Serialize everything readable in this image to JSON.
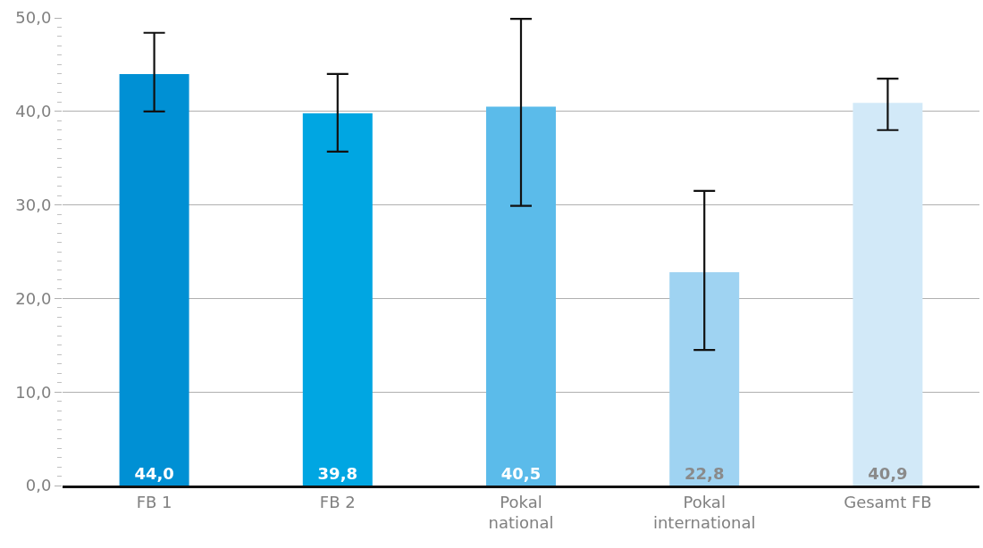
{
  "chart_data": {
    "type": "bar",
    "categories": [
      "FB 1",
      "FB 2",
      "Pokal national",
      "Pokal international",
      "Gesamt FB"
    ],
    "values": [
      44.0,
      39.8,
      40.5,
      22.8,
      40.9
    ],
    "colors": [
      "#0090d4",
      "#00a6e2",
      "#5bbbea",
      "#9fd3f2",
      "#d2e9f8"
    ],
    "value_labels": [
      "44,0",
      "39,8",
      "40,5",
      "22,8",
      "40,9"
    ],
    "errors": [
      [
        40.0,
        48.4
      ],
      [
        35.7,
        44.0
      ],
      [
        29.9,
        49.9
      ],
      [
        14.5,
        31.5
      ],
      [
        38.0,
        43.5
      ]
    ],
    "ylim": [
      0,
      50
    ],
    "yticks": [
      {
        "value": 0,
        "label": "0,0"
      },
      {
        "value": 10,
        "label": "10,0"
      },
      {
        "value": 20,
        "label": "20,0"
      },
      {
        "value": 30,
        "label": "30,0"
      },
      {
        "value": 40,
        "label": "40,0"
      },
      {
        "value": 50,
        "label": "50,0"
      }
    ],
    "grid": "y"
  }
}
